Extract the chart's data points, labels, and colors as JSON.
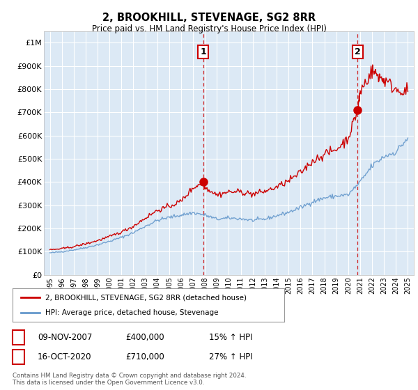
{
  "title": "2, BROOKHILL, STEVENAGE, SG2 8RR",
  "subtitle": "Price paid vs. HM Land Registry's House Price Index (HPI)",
  "plot_bg_color": "#dce9f5",
  "ylabel_ticks": [
    "£0",
    "£100K",
    "£200K",
    "£300K",
    "£400K",
    "£500K",
    "£600K",
    "£700K",
    "£800K",
    "£900K",
    "£1M"
  ],
  "ytick_values": [
    0,
    100000,
    200000,
    300000,
    400000,
    500000,
    600000,
    700000,
    800000,
    900000,
    1000000
  ],
  "ylim": [
    0,
    1050000
  ],
  "xlim_start": 1994.5,
  "xlim_end": 2025.5,
  "marker1_x": 2007.86,
  "marker1_y": 400000,
  "marker1_label": "1",
  "marker2_x": 2020.79,
  "marker2_y": 710000,
  "marker2_label": "2",
  "line1_color": "#cc0000",
  "line2_color": "#6699cc",
  "legend_line1": "2, BROOKHILL, STEVENAGE, SG2 8RR (detached house)",
  "legend_line2": "HPI: Average price, detached house, Stevenage",
  "annotation1_date": "09-NOV-2007",
  "annotation1_price": "£400,000",
  "annotation1_hpi": "15% ↑ HPI",
  "annotation2_date": "16-OCT-2020",
  "annotation2_price": "£710,000",
  "annotation2_hpi": "27% ↑ HPI",
  "footer": "Contains HM Land Registry data © Crown copyright and database right 2024.\nThis data is licensed under the Open Government Licence v3.0.",
  "xtick_years": [
    1995,
    1996,
    1997,
    1998,
    1999,
    2000,
    2001,
    2002,
    2003,
    2004,
    2005,
    2006,
    2007,
    2008,
    2009,
    2010,
    2011,
    2012,
    2013,
    2014,
    2015,
    2016,
    2017,
    2018,
    2019,
    2020,
    2021,
    2022,
    2023,
    2024,
    2025
  ]
}
